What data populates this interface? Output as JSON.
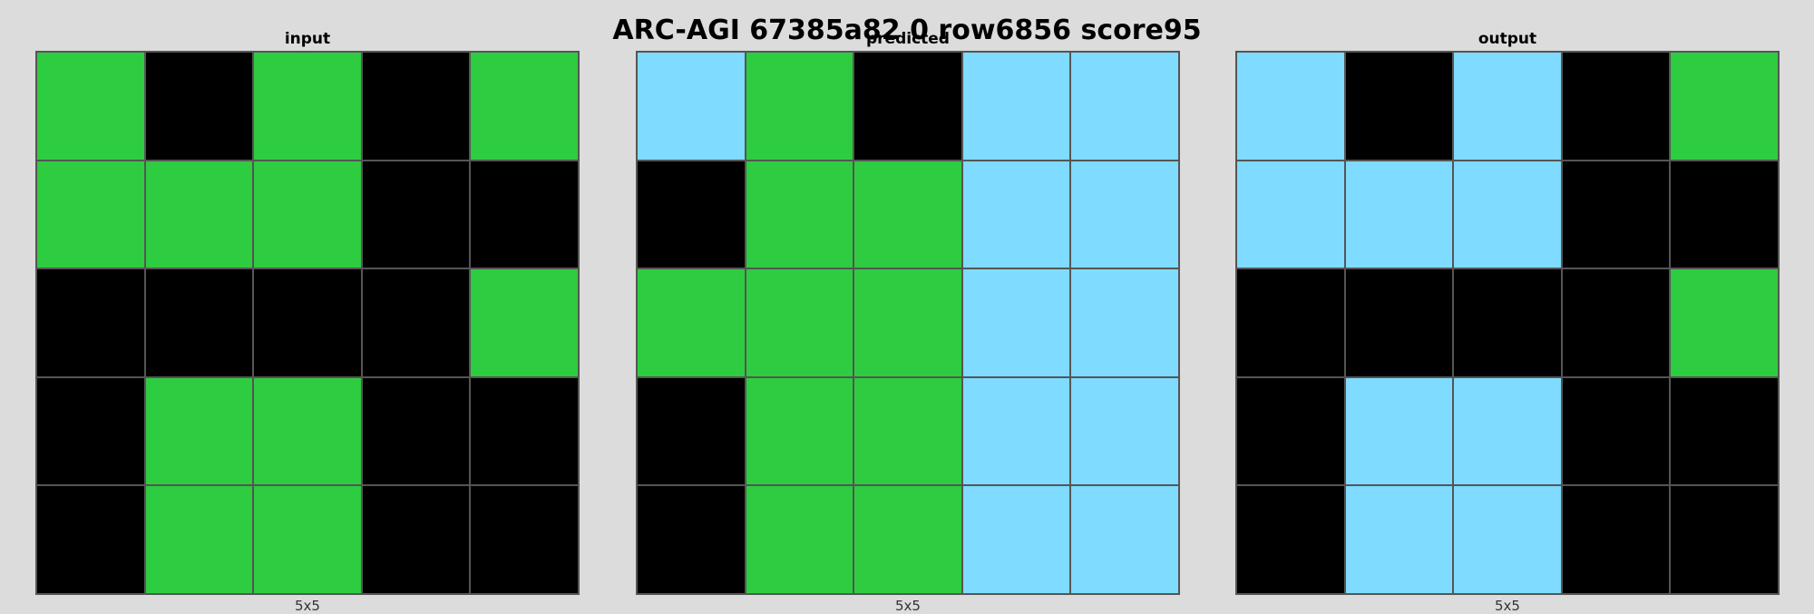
{
  "title": "ARC-AGI 67385a82 0 row6856 score95",
  "colors": {
    "0": "#000000",
    "3": "#2ecc40",
    "8": "#7fdbff"
  },
  "panels": [
    {
      "label": "input",
      "size": "5x5",
      "grid": [
        [
          3,
          0,
          3,
          0,
          3
        ],
        [
          3,
          3,
          3,
          0,
          0
        ],
        [
          0,
          0,
          0,
          0,
          3
        ],
        [
          0,
          3,
          3,
          0,
          0
        ],
        [
          0,
          3,
          3,
          0,
          0
        ]
      ]
    },
    {
      "label": "predicted",
      "size": "5x5",
      "grid": [
        [
          8,
          3,
          0,
          8,
          8
        ],
        [
          0,
          3,
          3,
          8,
          8
        ],
        [
          3,
          3,
          3,
          8,
          8
        ],
        [
          0,
          3,
          3,
          8,
          8
        ],
        [
          0,
          3,
          3,
          8,
          8
        ]
      ]
    },
    {
      "label": "output",
      "size": "5x5",
      "grid": [
        [
          8,
          0,
          8,
          0,
          3
        ],
        [
          8,
          8,
          8,
          0,
          0
        ],
        [
          0,
          0,
          0,
          0,
          3
        ],
        [
          0,
          8,
          8,
          0,
          0
        ],
        [
          0,
          8,
          8,
          0,
          0
        ]
      ]
    }
  ]
}
